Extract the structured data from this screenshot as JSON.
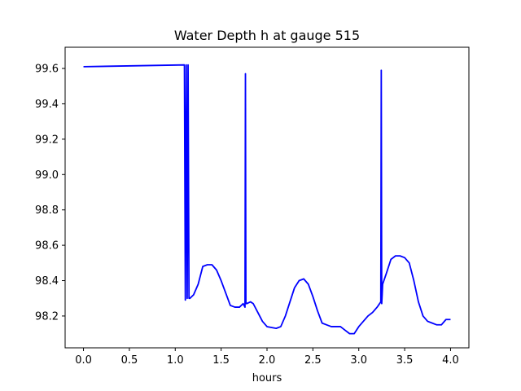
{
  "chart_data": {
    "type": "line",
    "title": "Water Depth h at gauge 515",
    "xlabel": "hours",
    "ylabel": "",
    "xlim": [
      -0.2,
      4.2
    ],
    "ylim": [
      98.02,
      99.72
    ],
    "grid": false,
    "x_ticks": [
      0.0,
      0.5,
      1.0,
      1.5,
      2.0,
      2.5,
      3.0,
      3.5,
      4.0
    ],
    "x_tick_labels": [
      "0.0",
      "0.5",
      "1.0",
      "1.5",
      "2.0",
      "2.5",
      "3.0",
      "3.5",
      "4.0"
    ],
    "y_ticks": [
      98.2,
      98.4,
      98.6,
      98.8,
      99.0,
      99.2,
      99.4,
      99.6
    ],
    "y_tick_labels": [
      "98.2",
      "98.4",
      "98.6",
      "98.8",
      "99.0",
      "99.2",
      "99.4",
      "99.6"
    ],
    "series": [
      {
        "color": "#0000ff",
        "x": [
          0.0,
          1.1,
          1.11,
          1.12,
          1.13,
          1.14,
          1.15,
          1.16,
          1.2,
          1.25,
          1.3,
          1.35,
          1.4,
          1.45,
          1.5,
          1.55,
          1.6,
          1.65,
          1.7,
          1.74,
          1.76,
          1.765,
          1.77,
          1.775,
          1.78,
          1.82,
          1.85,
          1.9,
          1.95,
          2.0,
          2.1,
          2.15,
          2.2,
          2.25,
          2.3,
          2.35,
          2.4,
          2.45,
          2.5,
          2.55,
          2.6,
          2.65,
          2.7,
          2.8,
          2.85,
          2.9,
          2.95,
          3.0,
          3.05,
          3.1,
          3.15,
          3.2,
          3.24,
          3.245,
          3.25,
          3.255,
          3.26,
          3.3,
          3.35,
          3.4,
          3.45,
          3.5,
          3.55,
          3.6,
          3.65,
          3.7,
          3.75,
          3.8,
          3.85,
          3.9,
          3.95,
          4.0
        ],
        "y": [
          99.61,
          99.62,
          98.29,
          99.62,
          98.3,
          99.62,
          98.3,
          98.3,
          98.32,
          98.38,
          98.48,
          98.49,
          98.49,
          98.46,
          98.4,
          98.33,
          98.26,
          98.25,
          98.25,
          98.27,
          98.25,
          99.57,
          98.28,
          98.27,
          98.27,
          98.28,
          98.27,
          98.22,
          98.17,
          98.14,
          98.13,
          98.14,
          98.2,
          98.28,
          98.36,
          98.4,
          98.41,
          98.38,
          98.31,
          98.23,
          98.16,
          98.15,
          98.14,
          98.14,
          98.12,
          98.1,
          98.1,
          98.14,
          98.17,
          98.2,
          98.22,
          98.25,
          98.28,
          99.59,
          98.27,
          98.32,
          98.38,
          98.44,
          98.52,
          98.54,
          98.54,
          98.53,
          98.5,
          98.4,
          98.28,
          98.2,
          98.17,
          98.16,
          98.15,
          98.15,
          98.18,
          98.18
        ]
      }
    ]
  }
}
